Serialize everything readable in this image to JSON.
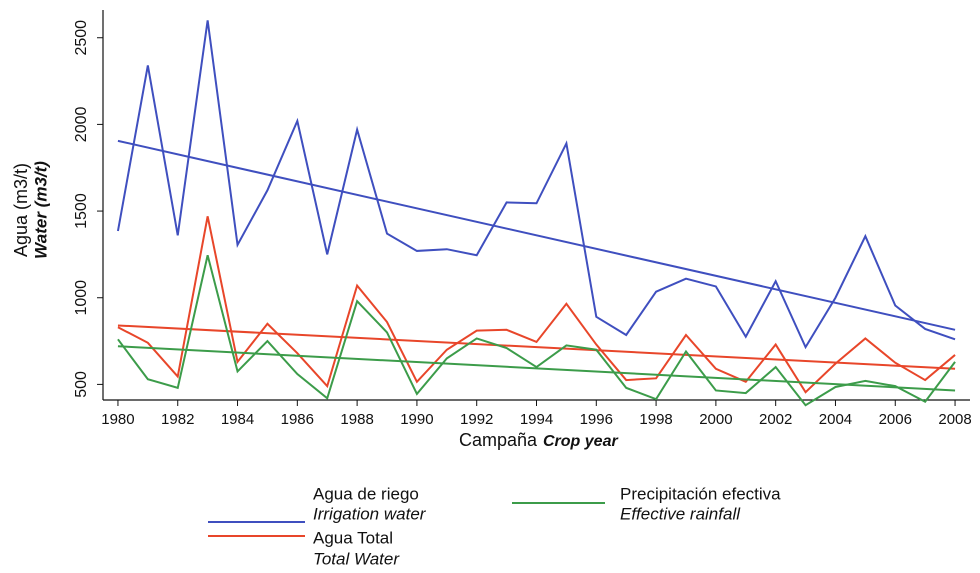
{
  "chart_data": {
    "type": "line",
    "ylabel": "Agua (m3/t)",
    "ylabel_en": "Water (m3/t)",
    "xlabel": "Campaña",
    "xlabel_en": "Crop year",
    "x": [
      1980,
      1981,
      1982,
      1983,
      1984,
      1985,
      1986,
      1987,
      1988,
      1989,
      1990,
      1991,
      1992,
      1993,
      1994,
      1995,
      1996,
      1997,
      1998,
      1999,
      2000,
      2001,
      2002,
      2003,
      2004,
      2005,
      2006,
      2007,
      2008
    ],
    "xlim": [
      1979.5,
      2008.5
    ],
    "xticks": [
      1980,
      1982,
      1984,
      1986,
      1988,
      1990,
      1992,
      1994,
      1996,
      1998,
      2000,
      2002,
      2004,
      2006,
      2008
    ],
    "ylim": [
      410,
      2660
    ],
    "yticks": [
      500,
      1000,
      1500,
      2000,
      2500
    ],
    "grid": false,
    "series": [
      {
        "name": "Agua de riego",
        "name_en": "Irrigation water",
        "color": "#3f4fbf",
        "values": [
          1385,
          2340,
          1360,
          2600,
          1305,
          1620,
          2020,
          1250,
          1970,
          1370,
          1270,
          1280,
          1245,
          1550,
          1545,
          1890,
          890,
          785,
          1035,
          1110,
          1065,
          775,
          1095,
          715,
          1000,
          1355,
          955,
          820,
          760
        ],
        "fit": [
          1905,
          815
        ]
      },
      {
        "name": "Agua Total",
        "name_en": "Total Water",
        "color": "#e8462a",
        "values": [
          830,
          740,
          545,
          1470,
          630,
          850,
          680,
          490,
          1070,
          860,
          515,
          700,
          810,
          815,
          745,
          965,
          730,
          525,
          535,
          785,
          590,
          515,
          730,
          455,
          620,
          765,
          625,
          525,
          670
        ],
        "fit": [
          840,
          590
        ]
      },
      {
        "name": "Precipitación efectiva",
        "name_en": "Effective rainfall",
        "color": "#3c9c4a",
        "values": [
          760,
          530,
          480,
          1245,
          575,
          750,
          560,
          420,
          980,
          800,
          445,
          650,
          765,
          710,
          600,
          725,
          700,
          480,
          415,
          690,
          465,
          450,
          600,
          380,
          485,
          520,
          490,
          400,
          630
        ],
        "fit": [
          720,
          465
        ]
      }
    ]
  }
}
